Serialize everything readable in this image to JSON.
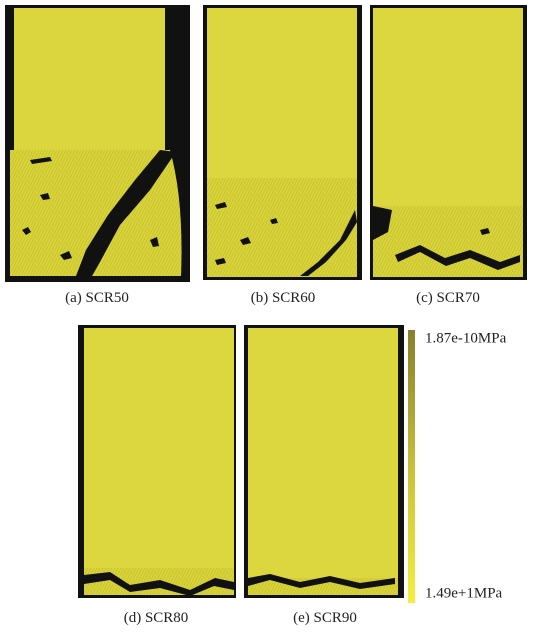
{
  "panels": [
    {
      "caption": "(a) SCR50"
    },
    {
      "caption": "(b) SCR60"
    },
    {
      "caption": "(c) SCR70"
    },
    {
      "caption": "(d) SCR80"
    },
    {
      "caption": "(e) SCR90"
    }
  ],
  "colorbar": {
    "top_label": "1.87e-10MPa",
    "bottom_label": "1.49e+1MPa"
  }
}
